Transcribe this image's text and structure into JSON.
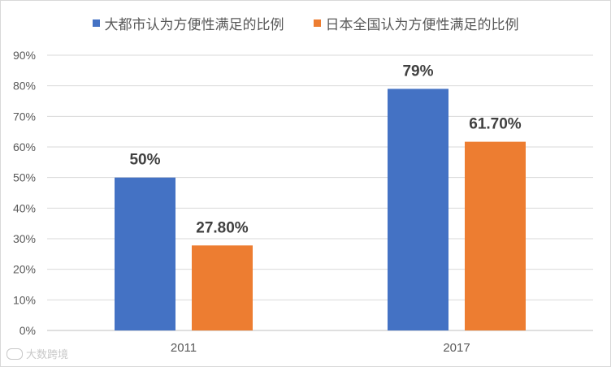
{
  "chart_data": {
    "type": "bar",
    "categories": [
      "2011",
      "2017"
    ],
    "series": [
      {
        "name": "大都市认为方便性满足的比例",
        "values": [
          50,
          79
        ],
        "labels": [
          "50%",
          "79%"
        ],
        "color": "#4472C4"
      },
      {
        "name": "日本全国认为方便性满足的比例",
        "values": [
          27.8,
          61.7
        ],
        "labels": [
          "27.80%",
          "61.70%"
        ],
        "color": "#ED7D31"
      }
    ],
    "y_ticks": [
      "0%",
      "10%",
      "20%",
      "30%",
      "40%",
      "50%",
      "60%",
      "70%",
      "80%",
      "90%"
    ],
    "ylim": [
      0,
      90
    ],
    "grid": true,
    "legend_position": "top"
  },
  "watermark": {
    "text": "大数跨境"
  }
}
